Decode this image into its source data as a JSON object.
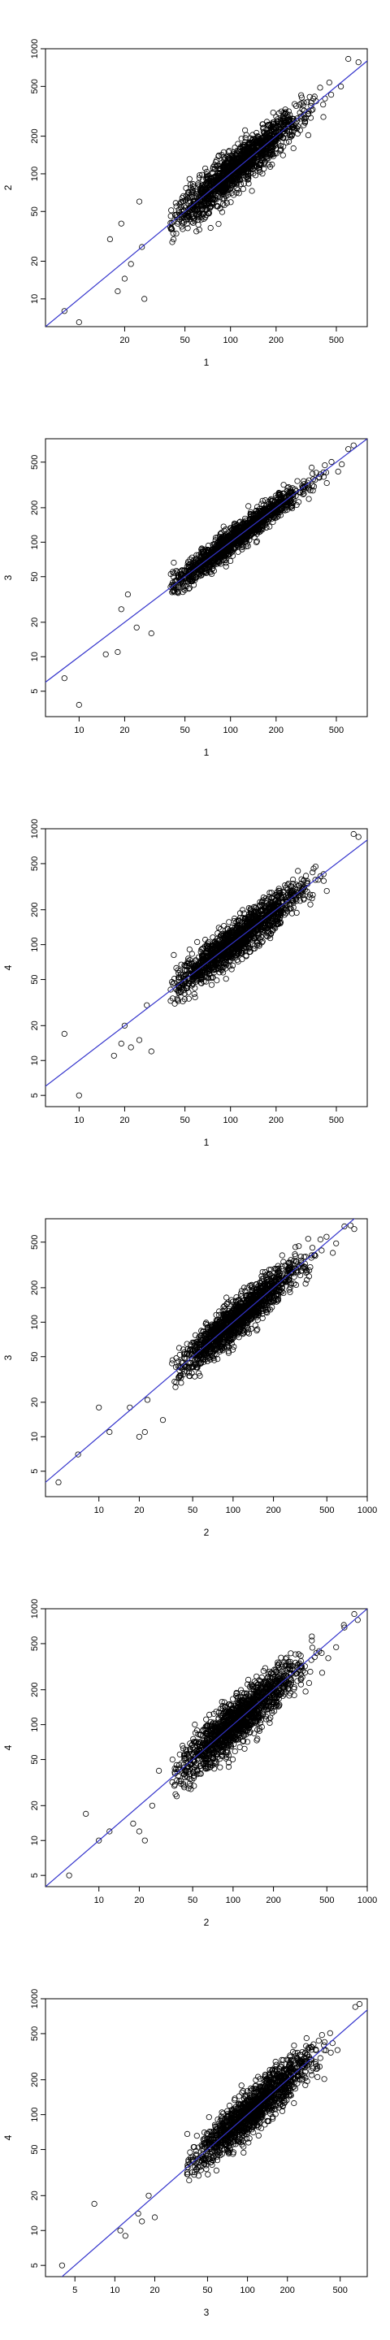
{
  "chart_data": [
    {
      "type": "scatter",
      "log_x": true,
      "log_y": true,
      "xlabel": "1",
      "ylabel": "2",
      "xlim": [
        6,
        800
      ],
      "ylim": [
        6,
        1000
      ],
      "xticks": [
        "20",
        "50",
        "100",
        "200",
        "500"
      ],
      "yticks": [
        "10",
        "20",
        "50",
        "100",
        "200",
        "500",
        "1000"
      ],
      "fit_line": {
        "intercept": 0.0,
        "slope": 1.0,
        "color": "#3333cc"
      },
      "outliers": [
        [
          8,
          8
        ],
        [
          10,
          6.5
        ],
        [
          27,
          10
        ],
        [
          18,
          11.5
        ],
        [
          20,
          14.5
        ],
        [
          22,
          19
        ],
        [
          19,
          40
        ],
        [
          16,
          30
        ],
        [
          26,
          26
        ],
        [
          25,
          60
        ],
        [
          600,
          830
        ],
        [
          700,
          780
        ]
      ],
      "cloud": {
        "x_median": 110,
        "x_spread": 0.21,
        "noise": 0.08,
        "n": 1600,
        "x_range": [
          40,
          800
        ]
      }
    },
    {
      "type": "scatter",
      "log_x": true,
      "log_y": true,
      "xlabel": "1",
      "ylabel": "3",
      "xlim": [
        6,
        800
      ],
      "ylim": [
        3,
        800
      ],
      "xticks": [
        "10",
        "20",
        "50",
        "100",
        "200",
        "500"
      ],
      "yticks": [
        "5",
        "10",
        "20",
        "50",
        "100",
        "200",
        "500"
      ],
      "fit_line": {
        "intercept": 0.0,
        "slope": 1.0,
        "color": "#3333cc"
      },
      "outliers": [
        [
          8,
          6.5
        ],
        [
          10,
          3.8
        ],
        [
          15,
          10.5
        ],
        [
          18,
          11
        ],
        [
          19,
          26
        ],
        [
          21,
          35
        ],
        [
          24,
          18
        ],
        [
          30,
          16
        ],
        [
          600,
          650
        ],
        [
          650,
          700
        ]
      ],
      "cloud": {
        "x_median": 110,
        "x_spread": 0.21,
        "noise": 0.055,
        "n": 1600,
        "x_range": [
          40,
          750
        ]
      }
    },
    {
      "type": "scatter",
      "log_x": true,
      "log_y": true,
      "xlabel": "1",
      "ylabel": "4",
      "xlim": [
        6,
        800
      ],
      "ylim": [
        4,
        1000
      ],
      "xticks": [
        "10",
        "20",
        "50",
        "100",
        "200",
        "500"
      ],
      "yticks": [
        "5",
        "10",
        "20",
        "50",
        "100",
        "200",
        "500",
        "1000"
      ],
      "fit_line": {
        "intercept": 0.0,
        "slope": 1.0,
        "color": "#3333cc"
      },
      "outliers": [
        [
          8,
          17
        ],
        [
          10,
          5
        ],
        [
          17,
          11
        ],
        [
          19,
          14
        ],
        [
          20,
          20
        ],
        [
          22,
          13
        ],
        [
          25,
          15
        ],
        [
          28,
          30
        ],
        [
          30,
          12
        ],
        [
          650,
          900
        ],
        [
          700,
          850
        ]
      ],
      "cloud": {
        "x_median": 110,
        "x_spread": 0.21,
        "noise": 0.08,
        "n": 1600,
        "x_range": [
          40,
          750
        ]
      }
    },
    {
      "type": "scatter",
      "log_x": true,
      "log_y": true,
      "xlabel": "2",
      "ylabel": "3",
      "xlim": [
        4,
        1000
      ],
      "ylim": [
        3,
        800
      ],
      "xticks": [
        "10",
        "20",
        "50",
        "100",
        "200",
        "500",
        "1000"
      ],
      "yticks": [
        "5",
        "10",
        "20",
        "50",
        "100",
        "200",
        "500"
      ],
      "fit_line": {
        "intercept": 0.0,
        "slope": 1.0,
        "color": "#3333cc"
      },
      "outliers": [
        [
          5,
          4
        ],
        [
          7,
          7
        ],
        [
          10,
          18
        ],
        [
          12,
          11
        ],
        [
          17,
          18
        ],
        [
          20,
          10
        ],
        [
          22,
          11
        ],
        [
          23,
          21
        ],
        [
          30,
          14
        ],
        [
          800,
          650
        ],
        [
          750,
          700
        ]
      ],
      "cloud": {
        "x_median": 110,
        "x_spread": 0.22,
        "noise": 0.08,
        "n": 1600,
        "x_range": [
          35,
          900
        ]
      }
    },
    {
      "type": "scatter",
      "log_x": true,
      "log_y": true,
      "xlabel": "2",
      "ylabel": "4",
      "xlim": [
        4,
        1000
      ],
      "ylim": [
        4,
        1000
      ],
      "xticks": [
        "10",
        "20",
        "50",
        "100",
        "200",
        "500",
        "1000"
      ],
      "yticks": [
        "5",
        "10",
        "20",
        "50",
        "100",
        "200",
        "500",
        "1000"
      ],
      "fit_line": {
        "intercept": 0.0,
        "slope": 1.0,
        "color": "#3333cc"
      },
      "outliers": [
        [
          6,
          5
        ],
        [
          8,
          17
        ],
        [
          10,
          10
        ],
        [
          12,
          12
        ],
        [
          18,
          14
        ],
        [
          20,
          12
        ],
        [
          22,
          10
        ],
        [
          25,
          20
        ],
        [
          28,
          40
        ],
        [
          800,
          900
        ],
        [
          850,
          800
        ]
      ],
      "cloud": {
        "x_median": 110,
        "x_spread": 0.22,
        "noise": 0.1,
        "n": 1600,
        "x_range": [
          35,
          900
        ]
      }
    },
    {
      "type": "scatter",
      "log_x": true,
      "log_y": true,
      "xlabel": "3",
      "ylabel": "4",
      "xlim": [
        3,
        800
      ],
      "ylim": [
        4,
        1000
      ],
      "xticks": [
        "5",
        "10",
        "20",
        "50",
        "100",
        "200",
        "500"
      ],
      "yticks": [
        "5",
        "10",
        "20",
        "50",
        "100",
        "200",
        "500",
        "1000"
      ],
      "fit_line": {
        "intercept": 0.0,
        "slope": 1.0,
        "color": "#3333cc"
      },
      "outliers": [
        [
          4,
          5
        ],
        [
          7,
          17
        ],
        [
          11,
          10
        ],
        [
          12,
          9
        ],
        [
          15,
          14
        ],
        [
          16,
          12
        ],
        [
          18,
          20
        ],
        [
          20,
          13
        ],
        [
          700,
          900
        ],
        [
          650,
          850
        ]
      ],
      "cloud": {
        "x_median": 110,
        "x_spread": 0.21,
        "noise": 0.09,
        "n": 1600,
        "x_range": [
          35,
          750
        ]
      }
    }
  ]
}
